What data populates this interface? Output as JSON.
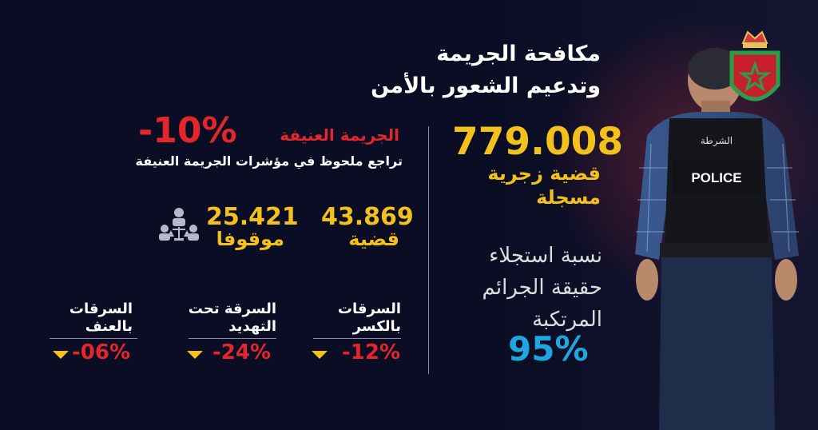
{
  "title": {
    "line1": "مكافحة الجريمة",
    "line2": "وتدعيم الشعور بالأمن"
  },
  "total_cases": {
    "value": "779.008",
    "label_line1": "قضية زجرية",
    "label_line2": "مسجلة"
  },
  "response_rate": {
    "line1": "نسبة استجلاء",
    "line2": "حقيقة الجرائم",
    "line3": "المرتكبة",
    "value": "95%"
  },
  "violent_crime": {
    "label": "الجريمة العنيفة",
    "change": "-10%",
    "subtitle": "تراجع ملحوظ في  مؤشرات الجريمة العنيفة"
  },
  "cases": {
    "value": "43.869",
    "label": "قضية"
  },
  "arrested": {
    "value": "25.421",
    "label": "موقوفا"
  },
  "categories": [
    {
      "line1": "السرقات",
      "line2": "بالكسر",
      "change": "-12%"
    },
    {
      "line1": "السرقة تحت",
      "line2": "التهديد",
      "change": "-24%"
    },
    {
      "line1": "السرقات",
      "line2": "بالعنف",
      "change": "-06%"
    }
  ],
  "police_vest_text": "POLICE",
  "police_vest_arabic": "الشرطة",
  "colors": {
    "background": "#0b0d24",
    "yellow": "#f2c11b",
    "red": "#e3262c",
    "blue": "#1fa6e0"
  }
}
